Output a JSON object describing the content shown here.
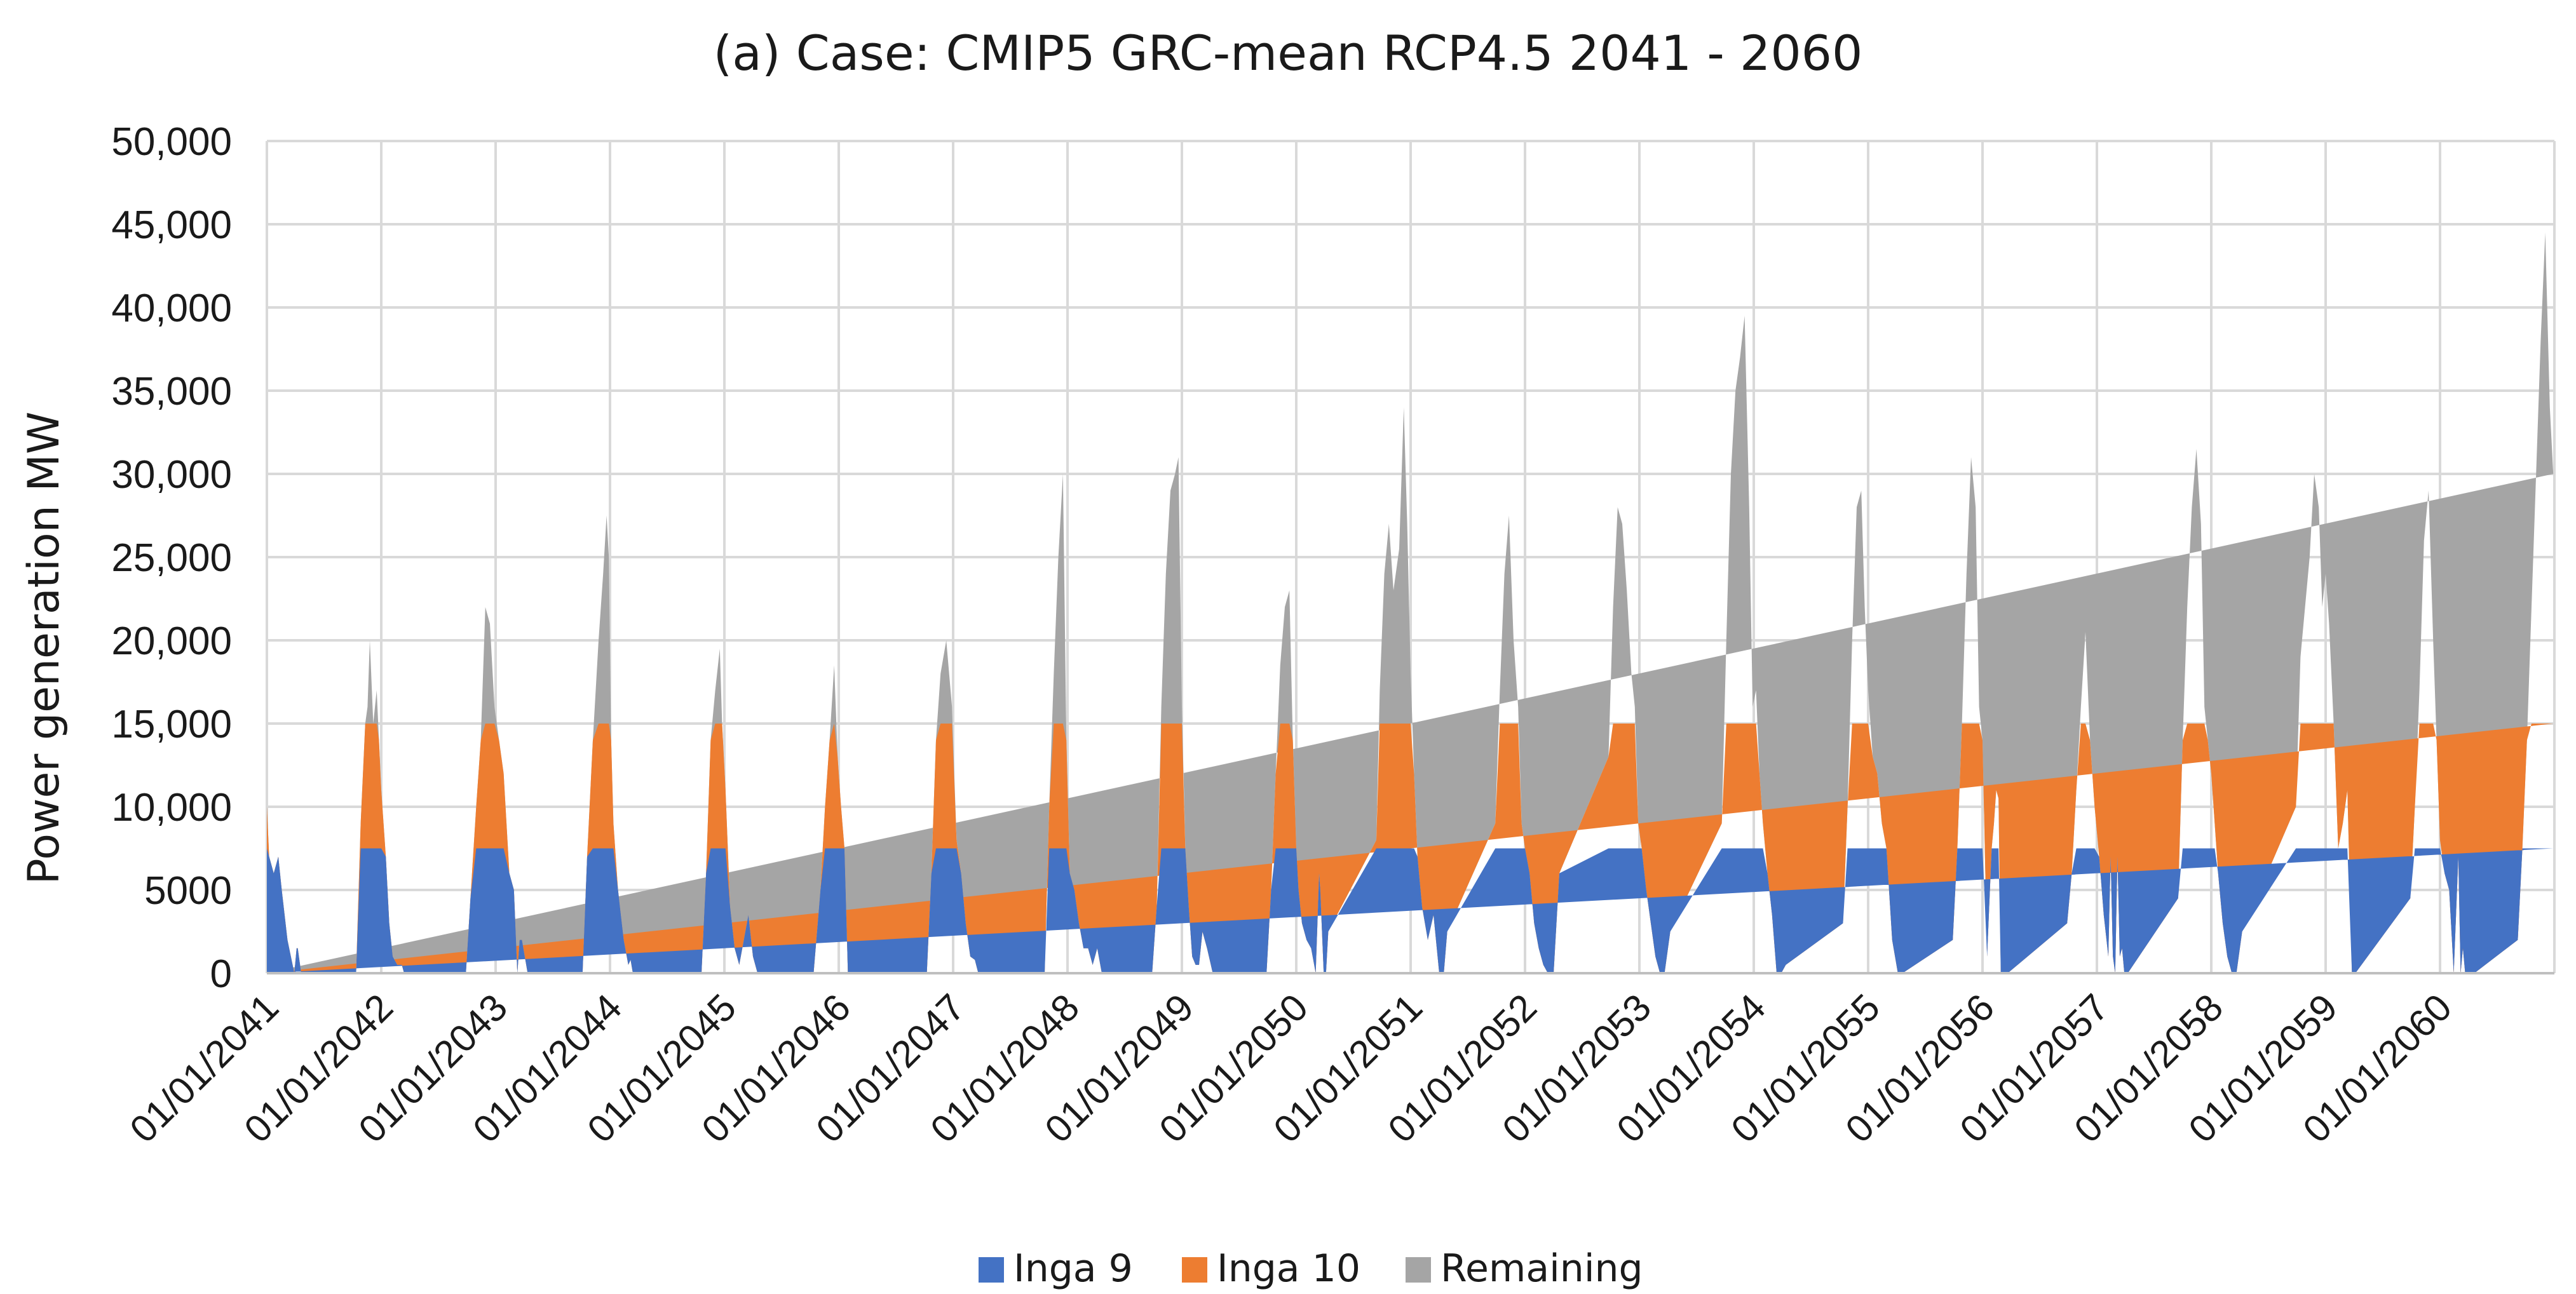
{
  "chart_data": {
    "type": "area",
    "stacked": true,
    "title": "(a)  Case: CMIP5 GRC-mean  RCP4.5  2041 - 2060",
    "xlabel": "",
    "ylabel": "Power generation MW",
    "ylim": [
      0,
      50000
    ],
    "yticks": [
      0,
      5000,
      10000,
      15000,
      20000,
      25000,
      30000,
      35000,
      40000,
      45000,
      50000
    ],
    "ytick_labels": [
      "0",
      "5000",
      "10,000",
      "15,000",
      "20,000",
      "25,000",
      "30,000",
      "35,000",
      "40,000",
      "45,000",
      "50,000"
    ],
    "xlim": [
      2041.0,
      2061.0
    ],
    "xtick_labels": [
      "01/01/2041",
      "01/01/2042",
      "01/01/2043",
      "01/01/2044",
      "01/01/2045",
      "01/01/2046",
      "01/01/2047",
      "01/01/2048",
      "01/01/2049",
      "01/01/2050",
      "01/01/2051",
      "01/01/2052",
      "01/01/2053",
      "01/01/2054",
      "01/01/2055",
      "01/01/2056",
      "01/01/2057",
      "01/01/2058",
      "01/01/2059",
      "01/01/2060"
    ],
    "grid": true,
    "legend_position": "bottom",
    "series": [
      {
        "name": "Inga 9",
        "color": "#4472c4"
      },
      {
        "name": "Inga 10",
        "color": "#ed7d31"
      },
      {
        "name": "Remaining",
        "color": "#a5a5a5"
      }
    ],
    "capacity_inga9_mw": 7500,
    "capacity_inga10_mw": 7500,
    "total_x": [
      2040.98,
      2041.02,
      2041.06,
      2041.1,
      2041.13,
      2041.18,
      2041.24,
      2041.26,
      2041.27,
      2041.3,
      2041.78,
      2041.82,
      2041.86,
      2041.88,
      2041.9,
      2041.93,
      2041.96,
      2041.98,
      2042.0,
      2042.04,
      2042.07,
      2042.1,
      2042.14,
      2042.18,
      2042.2,
      2042.74,
      2042.78,
      2042.83,
      2042.87,
      2042.91,
      2042.95,
      2042.99,
      2043.03,
      2043.07,
      2043.12,
      2043.16,
      2043.19,
      2043.21,
      2043.23,
      2043.28,
      2043.76,
      2043.8,
      2043.85,
      2043.9,
      2043.94,
      2043.97,
      2043.99,
      2044.01,
      2044.03,
      2044.07,
      2044.12,
      2044.16,
      2044.18,
      2044.2,
      2044.8,
      2044.84,
      2044.88,
      2044.92,
      2044.96,
      2044.98,
      2045.01,
      2045.05,
      2045.09,
      2045.13,
      2045.17,
      2045.21,
      2045.25,
      2045.29,
      2045.78,
      2045.84,
      2045.88,
      2045.92,
      2045.96,
      2045.99,
      2046.02,
      2046.05,
      2046.08,
      2046.77,
      2046.81,
      2046.85,
      2046.89,
      2046.94,
      2046.99,
      2047.03,
      2047.07,
      2047.11,
      2047.15,
      2047.19,
      2047.22,
      2047.8,
      2047.84,
      2047.88,
      2047.92,
      2047.96,
      2047.99,
      2048.02,
      2048.06,
      2048.1,
      2048.14,
      2048.18,
      2048.22,
      2048.26,
      2048.3,
      2048.74,
      2048.78,
      2048.82,
      2048.86,
      2048.9,
      2048.94,
      2048.97,
      2049.0,
      2049.03,
      2049.06,
      2049.09,
      2049.12,
      2049.15,
      2049.18,
      2049.22,
      2049.27,
      2049.74,
      2049.78,
      2049.82,
      2049.86,
      2049.9,
      2049.94,
      2049.97,
      2050.0,
      2050.02,
      2050.05,
      2050.09,
      2050.13,
      2050.17,
      2050.2,
      2050.21,
      2050.24,
      2050.26,
      2050.28,
      2050.7,
      2050.73,
      2050.77,
      2050.81,
      2050.85,
      2050.9,
      2050.94,
      2050.97,
      2051.0,
      2051.03,
      2051.06,
      2051.1,
      2051.15,
      2051.2,
      2051.25,
      2051.29,
      2051.32,
      2051.74,
      2051.78,
      2051.82,
      2051.86,
      2051.9,
      2051.94,
      2051.97,
      2052.0,
      2052.04,
      2052.08,
      2052.12,
      2052.16,
      2052.2,
      2052.25,
      2052.3,
      2052.73,
      2052.77,
      2052.81,
      2052.85,
      2052.89,
      2052.93,
      2052.96,
      2052.99,
      2053.02,
      2053.06,
      2053.1,
      2053.14,
      2053.18,
      2053.22,
      2053.27,
      2053.72,
      2053.76,
      2053.8,
      2053.84,
      2053.88,
      2053.92,
      2053.96,
      2053.99,
      2054.02,
      2054.05,
      2054.08,
      2054.12,
      2054.16,
      2054.2,
      2054.24,
      2054.28,
      2054.78,
      2054.82,
      2054.86,
      2054.9,
      2054.94,
      2054.97,
      2055.0,
      2055.04,
      2055.08,
      2055.12,
      2055.16,
      2055.21,
      2055.26,
      2055.3,
      2055.74,
      2055.78,
      2055.82,
      2055.86,
      2055.9,
      2055.94,
      2055.97,
      2056.0,
      2056.04,
      2056.08,
      2056.1,
      2056.12,
      2056.14,
      2056.16,
      2056.18,
      2056.2,
      2056.22,
      2056.74,
      2056.78,
      2056.82,
      2056.86,
      2056.9,
      2056.94,
      2056.98,
      2057.02,
      2057.06,
      2057.1,
      2057.12,
      2057.14,
      2057.16,
      2057.18,
      2057.2,
      2057.22,
      2057.24,
      2057.27,
      2057.71,
      2057.75,
      2057.79,
      2057.83,
      2057.87,
      2057.91,
      2057.94,
      2057.97,
      2058.0,
      2058.03,
      2058.06,
      2058.1,
      2058.14,
      2058.18,
      2058.22,
      2058.27,
      2058.74,
      2058.78,
      2058.82,
      2058.86,
      2058.9,
      2058.94,
      2058.97,
      2059.0,
      2059.03,
      2059.07,
      2059.11,
      2059.15,
      2059.19,
      2059.23,
      2059.26,
      2059.74,
      2059.78,
      2059.82,
      2059.86,
      2059.9,
      2059.94,
      2059.97,
      2060.0,
      2060.04,
      2060.08,
      2060.12,
      2060.16,
      2060.18,
      2060.2,
      2060.22,
      2060.26,
      2060.3,
      2060.68,
      2060.72,
      2060.76,
      2060.8,
      2060.84,
      2060.88,
      2060.92,
      2060.96,
      2060.99,
      2061.0
    ],
    "total_y": [
      10000,
      7000,
      6000,
      7000,
      5000,
      2000,
      0,
      1500,
      1500,
      0,
      0,
      9000,
      15000,
      16000,
      20000,
      15000,
      17000,
      14000,
      11000,
      7000,
      3000,
      1000,
      500,
      500,
      0,
      0,
      4500,
      10000,
      14000,
      22000,
      21000,
      16000,
      14000,
      12000,
      6000,
      5000,
      0,
      2000,
      2000,
      0,
      0,
      7000,
      14000,
      20000,
      24000,
      27500,
      25000,
      14000,
      9000,
      5000,
      2000,
      500,
      800,
      0,
      0,
      6000,
      14000,
      17000,
      19500,
      15000,
      11000,
      4000,
      1500,
      500,
      2000,
      3500,
      1000,
      0,
      0,
      5000,
      10000,
      14000,
      18500,
      13000,
      10000,
      7500,
      0,
      0,
      6000,
      14000,
      18000,
      20000,
      16000,
      8000,
      6000,
      3000,
      1000,
      800,
      0,
      0,
      10000,
      18000,
      25000,
      30000,
      14000,
      6000,
      5000,
      3000,
      1500,
      1500,
      500,
      1500,
      0,
      0,
      4000,
      16000,
      24000,
      29000,
      30000,
      31000,
      16000,
      7500,
      4000,
      1000,
      500,
      500,
      2500,
      1500,
      0,
      0,
      5000,
      12000,
      18500,
      22000,
      23000,
      14000,
      7500,
      5000,
      3000,
      2000,
      1500,
      0,
      6000,
      5000,
      0,
      0,
      2500,
      8000,
      17000,
      24000,
      27000,
      23000,
      25500,
      34000,
      27000,
      18000,
      12000,
      7000,
      4000,
      2000,
      3500,
      0,
      0,
      2500,
      9000,
      17000,
      24000,
      27500,
      20000,
      16000,
      9000,
      7500,
      6000,
      3000,
      1500,
      500,
      0,
      0,
      6000,
      13000,
      22000,
      28000,
      27000,
      23000,
      18000,
      16000,
      9000,
      7500,
      5000,
      3000,
      1000,
      0,
      0,
      2500,
      9000,
      20000,
      30000,
      35000,
      37000,
      39500,
      28000,
      16000,
      17000,
      12000,
      9000,
      6000,
      3500,
      0,
      0,
      500,
      3000,
      10000,
      20000,
      28000,
      29000,
      22000,
      17000,
      13000,
      12000,
      9000,
      7500,
      2000,
      0,
      0,
      2000,
      7500,
      15000,
      24000,
      31000,
      28000,
      16000,
      14000,
      1000,
      7500,
      9000,
      11000,
      10500,
      0,
      0,
      0,
      0,
      3000,
      6000,
      11000,
      16000,
      20500,
      14000,
      10000,
      7000,
      3500,
      1000,
      7000,
      1000,
      0,
      7000,
      1000,
      1500,
      0,
      0,
      4500,
      14000,
      22000,
      28000,
      31500,
      27000,
      16000,
      14000,
      12000,
      9000,
      6000,
      3000,
      1000,
      0,
      0,
      2500,
      10000,
      19000,
      22000,
      25000,
      30000,
      28000,
      22000,
      24000,
      21000,
      15000,
      7500,
      9000,
      11000,
      0,
      0,
      4500,
      10000,
      17000,
      26000,
      29000,
      20000,
      14000,
      8000,
      6000,
      5000,
      0,
      7000,
      0,
      1500,
      0,
      0,
      0,
      2000,
      7500,
      14000,
      22000,
      30000,
      38000,
      44500,
      34000,
      30000
    ]
  },
  "legend": [
    {
      "label": "Inga 9",
      "color": "#4472c4"
    },
    {
      "label": "Inga 10",
      "color": "#ed7d31"
    },
    {
      "label": "Remaining",
      "color": "#a5a5a5"
    }
  ]
}
